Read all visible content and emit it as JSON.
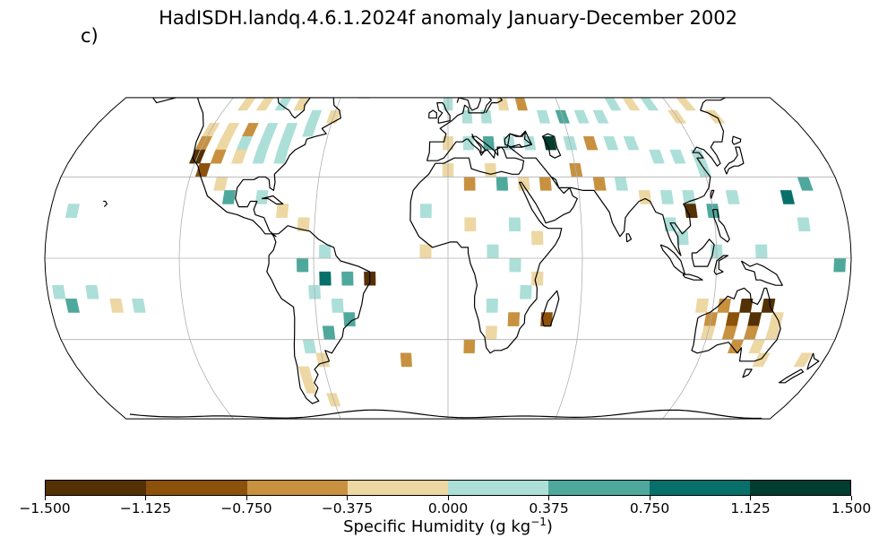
{
  "figure": {
    "title": "HadISDH.landq.4.6.1.2024f anomaly January-December 2002",
    "panel_label": "c)",
    "projection": "Robinson"
  },
  "colorbar": {
    "label_main": "Specific Humidity (g kg",
    "label_sup": "−1",
    "label_end": ")",
    "ticks": [
      "−1.500",
      "−1.125",
      "−0.750",
      "−0.375",
      "0.000",
      "0.375",
      "0.750",
      "1.125",
      "1.500"
    ],
    "colors": [
      "#543005",
      "#8c510a",
      "#c8913f",
      "#edd7a3",
      "#acdfd8",
      "#4fa89c",
      "#08706a",
      "#003c30"
    ]
  },
  "colors": {
    "ocean": "#ffffff",
    "coastline": "#000000",
    "gridline": "#b0b0b0"
  },
  "chart_data": {
    "type": "heatmap",
    "title": "HadISDH.landq.4.6.1.2024f anomaly January-December 2002",
    "variable": "Specific Humidity (g kg−1)",
    "bins": [
      -1.5,
      -1.125,
      -0.75,
      -0.375,
      0.0,
      0.375,
      0.75,
      1.125,
      1.5
    ],
    "cells": [
      {
        "lon": -150,
        "lat": 62.5,
        "v": -0.2
      },
      {
        "lon": -140,
        "lat": 62.5,
        "v": 0.2
      },
      {
        "lon": -130,
        "lat": 62.5,
        "v": -0.2
      },
      {
        "lon": -120,
        "lat": 62.5,
        "v": -0.2
      },
      {
        "lon": -110,
        "lat": 57.5,
        "v": -0.2
      },
      {
        "lon": -100,
        "lat": 57.5,
        "v": -0.2
      },
      {
        "lon": -90,
        "lat": 57.5,
        "v": 0.2
      },
      {
        "lon": -80,
        "lat": 57.5,
        "v": -0.2
      },
      {
        "lon": -70,
        "lat": 52.5,
        "v": 0.2
      },
      {
        "lon": -60,
        "lat": 52.5,
        "v": -0.2
      },
      {
        "lon": -120,
        "lat": 47.5,
        "v": -0.2
      },
      {
        "lon": -110,
        "lat": 47.5,
        "v": -0.2
      },
      {
        "lon": -100,
        "lat": 47.5,
        "v": -0.6
      },
      {
        "lon": -90,
        "lat": 47.5,
        "v": 0.2
      },
      {
        "lon": -80,
        "lat": 47.5,
        "v": 0.2
      },
      {
        "lon": -70,
        "lat": 47.5,
        "v": 0.2
      },
      {
        "lon": -120,
        "lat": 42.5,
        "v": -0.6
      },
      {
        "lon": -110,
        "lat": 42.5,
        "v": -0.2
      },
      {
        "lon": -100,
        "lat": 42.5,
        "v": 0.2
      },
      {
        "lon": -90,
        "lat": 42.5,
        "v": 0.2
      },
      {
        "lon": -80,
        "lat": 42.5,
        "v": 0.2
      },
      {
        "lon": -120,
        "lat": 37.5,
        "v": -1.2
      },
      {
        "lon": -115,
        "lat": 32.5,
        "v": -0.9
      },
      {
        "lon": -110,
        "lat": 37.5,
        "v": -0.6
      },
      {
        "lon": -100,
        "lat": 37.5,
        "v": -0.2
      },
      {
        "lon": -90,
        "lat": 37.5,
        "v": 0.2
      },
      {
        "lon": -80,
        "lat": 37.5,
        "v": 0.2
      },
      {
        "lon": -105,
        "lat": 27.5,
        "v": -0.2
      },
      {
        "lon": -100,
        "lat": 22.5,
        "v": 0.6
      },
      {
        "lon": -85,
        "lat": 22.5,
        "v": 0.2
      },
      {
        "lon": -75,
        "lat": 17.5,
        "v": -0.2
      },
      {
        "lon": -65,
        "lat": 12.5,
        "v": -0.2
      },
      {
        "lon": -55,
        "lat": 2.5,
        "v": 0.2
      },
      {
        "lon": -65,
        "lat": -2.5,
        "v": 0.6
      },
      {
        "lon": -55,
        "lat": -7.5,
        "v": 1.0
      },
      {
        "lon": -45,
        "lat": -7.5,
        "v": 0.6
      },
      {
        "lon": -35,
        "lat": -7.5,
        "v": -1.4
      },
      {
        "lon": -60,
        "lat": -12.5,
        "v": 0.2
      },
      {
        "lon": -50,
        "lat": -17.5,
        "v": 0.2
      },
      {
        "lon": -45,
        "lat": -22.5,
        "v": 0.6
      },
      {
        "lon": -55,
        "lat": -27.5,
        "v": 0.6
      },
      {
        "lon": -65,
        "lat": -32.5,
        "v": 0.2
      },
      {
        "lon": -60,
        "lat": -37.5,
        "v": -0.2
      },
      {
        "lon": -70,
        "lat": -42.5,
        "v": -0.2
      },
      {
        "lon": -70,
        "lat": -47.5,
        "v": -0.2
      },
      {
        "lon": -60,
        "lat": -52.5,
        "v": -0.2
      },
      {
        "lon": -10,
        "lat": 62.5,
        "v": 0.2
      },
      {
        "lon": 0,
        "lat": 57.5,
        "v": 0.2
      },
      {
        "lon": 10,
        "lat": 52.5,
        "v": 0.2
      },
      {
        "lon": 20,
        "lat": 52.5,
        "v": 0.2
      },
      {
        "lon": 30,
        "lat": 57.5,
        "v": -0.2
      },
      {
        "lon": 40,
        "lat": 57.5,
        "v": -0.6
      },
      {
        "lon": 50,
        "lat": 52.5,
        "v": 0.2
      },
      {
        "lon": 60,
        "lat": 52.5,
        "v": 0.6
      },
      {
        "lon": 70,
        "lat": 52.5,
        "v": 0.2
      },
      {
        "lon": 80,
        "lat": 52.5,
        "v": 0.2
      },
      {
        "lon": 90,
        "lat": 57.5,
        "v": 0.2
      },
      {
        "lon": 100,
        "lat": 57.5,
        "v": -0.2
      },
      {
        "lon": 110,
        "lat": 57.5,
        "v": 0.2
      },
      {
        "lon": 120,
        "lat": 52.5,
        "v": -0.2
      },
      {
        "lon": 130,
        "lat": 57.5,
        "v": -0.2
      },
      {
        "lon": 140,
        "lat": 52.5,
        "v": -0.2
      },
      {
        "lon": 0,
        "lat": 42.5,
        "v": -0.2
      },
      {
        "lon": 10,
        "lat": 42.5,
        "v": 0.2
      },
      {
        "lon": 20,
        "lat": 42.5,
        "v": 0.6
      },
      {
        "lon": 30,
        "lat": 42.5,
        "v": 0.2
      },
      {
        "lon": 40,
        "lat": 42.5,
        "v": 0.2
      },
      {
        "lon": 50,
        "lat": 42.5,
        "v": 1.2
      },
      {
        "lon": 60,
        "lat": 42.5,
        "v": 0.2
      },
      {
        "lon": 70,
        "lat": 42.5,
        "v": -0.6
      },
      {
        "lon": 80,
        "lat": 42.5,
        "v": 0.2
      },
      {
        "lon": 90,
        "lat": 42.5,
        "v": 0.2
      },
      {
        "lon": 100,
        "lat": 37.5,
        "v": 0.2
      },
      {
        "lon": 110,
        "lat": 37.5,
        "v": 0.2
      },
      {
        "lon": 120,
        "lat": 37.5,
        "v": 0.2
      },
      {
        "lon": 0,
        "lat": 32.5,
        "v": -0.2
      },
      {
        "lon": 10,
        "lat": 27.5,
        "v": -0.6
      },
      {
        "lon": 25,
        "lat": 27.5,
        "v": 0.6
      },
      {
        "lon": 35,
        "lat": 27.5,
        "v": -0.2
      },
      {
        "lon": 45,
        "lat": 27.5,
        "v": -0.6
      },
      {
        "lon": 60,
        "lat": 32.5,
        "v": -0.6
      },
      {
        "lon": 70,
        "lat": 27.5,
        "v": -0.6
      },
      {
        "lon": 80,
        "lat": 27.5,
        "v": 0.2
      },
      {
        "lon": 90,
        "lat": 22.5,
        "v": -0.2
      },
      {
        "lon": 100,
        "lat": 22.5,
        "v": 0.2
      },
      {
        "lon": 110,
        "lat": 22.5,
        "v": 0.2
      },
      {
        "lon": 120,
        "lat": 32.5,
        "v": 0.2
      },
      {
        "lon": -10,
        "lat": 17.5,
        "v": 0.2
      },
      {
        "lon": 10,
        "lat": 12.5,
        "v": -0.2
      },
      {
        "lon": 30,
        "lat": 12.5,
        "v": 0.2
      },
      {
        "lon": 40,
        "lat": 7.5,
        "v": -0.2
      },
      {
        "lon": 20,
        "lat": 2.5,
        "v": 0.2
      },
      {
        "lon": 30,
        "lat": -2.5,
        "v": 0.2
      },
      {
        "lon": 35,
        "lat": -12.5,
        "v": 0.2
      },
      {
        "lon": 20,
        "lat": -17.5,
        "v": 0.2
      },
      {
        "lon": 30,
        "lat": -22.5,
        "v": -0.6
      },
      {
        "lon": 20,
        "lat": -27.5,
        "v": -0.2
      },
      {
        "lon": 45,
        "lat": -22.5,
        "v": -0.9
      },
      {
        "lon": 10,
        "lat": -32.5,
        "v": -0.6
      },
      {
        "lon": 100,
        "lat": 12.5,
        "v": 0.2
      },
      {
        "lon": 105,
        "lat": 7.5,
        "v": 0.2
      },
      {
        "lon": 110,
        "lat": 17.5,
        "v": -1.2
      },
      {
        "lon": 120,
        "lat": 17.5,
        "v": 0.6
      },
      {
        "lon": 130,
        "lat": 22.5,
        "v": 0.2
      },
      {
        "lon": 120,
        "lat": 2.5,
        "v": 0.2
      },
      {
        "lon": 140,
        "lat": 2.5,
        "v": 0.2
      },
      {
        "lon": 155,
        "lat": 22.5,
        "v": 1.0
      },
      {
        "lon": 160,
        "lat": 12.5,
        "v": 0.2
      },
      {
        "lon": 165,
        "lat": 27.5,
        "v": 0.6
      },
      {
        "lon": 115,
        "lat": -17.5,
        "v": -0.2
      },
      {
        "lon": 125,
        "lat": -17.5,
        "v": -0.6
      },
      {
        "lon": 135,
        "lat": -17.5,
        "v": -1.4
      },
      {
        "lon": 145,
        "lat": -17.5,
        "v": -1.4
      },
      {
        "lon": 120,
        "lat": -22.5,
        "v": -0.6
      },
      {
        "lon": 130,
        "lat": -22.5,
        "v": -0.9
      },
      {
        "lon": 140,
        "lat": -22.5,
        "v": -1.4
      },
      {
        "lon": 150,
        "lat": -22.5,
        "v": -0.2
      },
      {
        "lon": 120,
        "lat": -27.5,
        "v": -0.2
      },
      {
        "lon": 130,
        "lat": -27.5,
        "v": -0.6
      },
      {
        "lon": 140,
        "lat": -27.5,
        "v": -0.6
      },
      {
        "lon": 150,
        "lat": -27.5,
        "v": -0.2
      },
      {
        "lon": 135,
        "lat": -32.5,
        "v": -0.6
      },
      {
        "lon": 145,
        "lat": -32.5,
        "v": -0.2
      },
      {
        "lon": 150,
        "lat": -37.5,
        "v": -0.2
      },
      {
        "lon": 170,
        "lat": -37.5,
        "v": -0.2
      },
      {
        "lon": 175,
        "lat": -2.5,
        "v": 0.6
      },
      {
        "lon": -170,
        "lat": 17.5,
        "v": 0.2
      },
      {
        "lon": -175,
        "lat": -12.5,
        "v": 0.2
      },
      {
        "lon": -170,
        "lat": -17.5,
        "v": 0.6
      },
      {
        "lon": -160,
        "lat": -12.5,
        "v": 0.2
      },
      {
        "lon": -150,
        "lat": -17.5,
        "v": -0.2
      },
      {
        "lon": -140,
        "lat": -17.5,
        "v": 0.2
      },
      {
        "lon": -20,
        "lat": -37.5,
        "v": -0.6
      },
      {
        "lon": -10,
        "lat": 2.5,
        "v": -0.2
      },
      {
        "lon": 40,
        "lat": -7.5,
        "v": -0.2
      },
      {
        "lon": 20,
        "lat": 32.5,
        "v": -0.2
      }
    ]
  }
}
